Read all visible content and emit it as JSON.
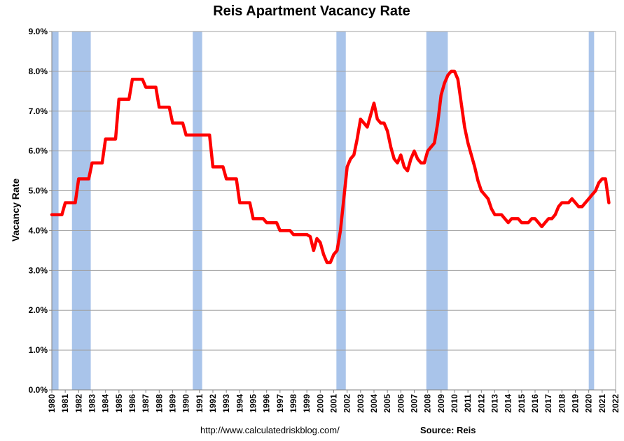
{
  "chart_data": {
    "type": "line",
    "title": "Reis Apartment Vacancy Rate",
    "xlabel": "",
    "ylabel": "Vacancy Rate",
    "ylim": [
      0,
      9
    ],
    "xlim": [
      1980,
      2022
    ],
    "y_ticks": [
      "0.0%",
      "1.0%",
      "2.0%",
      "3.0%",
      "4.0%",
      "5.0%",
      "6.0%",
      "7.0%",
      "8.0%",
      "9.0%"
    ],
    "y_tick_values": [
      0,
      1,
      2,
      3,
      4,
      5,
      6,
      7,
      8,
      9
    ],
    "x_ticks": [
      "1980",
      "1981",
      "1982",
      "1983",
      "1984",
      "1985",
      "1986",
      "1987",
      "1988",
      "1989",
      "1990",
      "1991",
      "1992",
      "1993",
      "1994",
      "1995",
      "1996",
      "1997",
      "1998",
      "1999",
      "2000",
      "2001",
      "2002",
      "2003",
      "2004",
      "2005",
      "2006",
      "2007",
      "2008",
      "2009",
      "2010",
      "2011",
      "2012",
      "2013",
      "2014",
      "2015",
      "2016",
      "2017",
      "2018",
      "2019",
      "2020",
      "2021",
      "2022"
    ],
    "grid": true,
    "line_color": "#ff0000",
    "recession_color": "#a9c4ea",
    "recessions": [
      [
        1980.0,
        1980.5
      ],
      [
        1981.5,
        1982.9
      ],
      [
        1990.5,
        1991.2
      ],
      [
        2001.2,
        2001.9
      ],
      [
        2007.9,
        2009.5
      ],
      [
        2020.0,
        2020.4
      ]
    ],
    "x": [
      1980.0,
      1980.75,
      1981.0,
      1981.75,
      1982.0,
      1982.75,
      1983.0,
      1983.75,
      1984.0,
      1984.75,
      1985.0,
      1985.75,
      1986.0,
      1986.75,
      1987.0,
      1987.75,
      1988.0,
      1988.75,
      1989.0,
      1989.75,
      1990.0,
      1990.75,
      1991.0,
      1991.75,
      1992.0,
      1992.75,
      1993.0,
      1993.75,
      1994.0,
      1994.75,
      1995.0,
      1995.75,
      1996.0,
      1996.75,
      1997.0,
      1997.75,
      1998.0,
      1998.75,
      1999.0,
      1999.25,
      1999.5,
      1999.75,
      2000.0,
      2000.25,
      2000.5,
      2000.75,
      2001.0,
      2001.25,
      2001.5,
      2001.75,
      2002.0,
      2002.25,
      2002.5,
      2002.75,
      2003.0,
      2003.25,
      2003.5,
      2003.75,
      2004.0,
      2004.25,
      2004.5,
      2004.75,
      2005.0,
      2005.25,
      2005.5,
      2005.75,
      2006.0,
      2006.25,
      2006.5,
      2006.75,
      2007.0,
      2007.25,
      2007.5,
      2007.75,
      2008.0,
      2008.25,
      2008.5,
      2008.75,
      2009.0,
      2009.25,
      2009.5,
      2009.75,
      2010.0,
      2010.25,
      2010.5,
      2010.75,
      2011.0,
      2011.25,
      2011.5,
      2011.75,
      2012.0,
      2012.25,
      2012.5,
      2012.75,
      2013.0,
      2013.25,
      2013.5,
      2013.75,
      2014.0,
      2014.25,
      2014.5,
      2014.75,
      2015.0,
      2015.25,
      2015.5,
      2015.75,
      2016.0,
      2016.25,
      2016.5,
      2016.75,
      2017.0,
      2017.25,
      2017.5,
      2017.75,
      2018.0,
      2018.25,
      2018.5,
      2018.75,
      2019.0,
      2019.25,
      2019.5,
      2019.75,
      2020.0,
      2020.25,
      2020.5,
      2020.75,
      2021.0,
      2021.25,
      2021.5
    ],
    "values": [
      4.4,
      4.4,
      4.7,
      4.7,
      5.3,
      5.3,
      5.7,
      5.7,
      6.3,
      6.3,
      7.3,
      7.3,
      7.8,
      7.8,
      7.6,
      7.6,
      7.1,
      7.1,
      6.7,
      6.7,
      6.4,
      6.4,
      6.4,
      6.4,
      5.6,
      5.6,
      5.3,
      5.3,
      4.7,
      4.7,
      4.3,
      4.3,
      4.2,
      4.2,
      4.0,
      4.0,
      3.9,
      3.9,
      3.9,
      3.85,
      3.5,
      3.8,
      3.7,
      3.4,
      3.2,
      3.2,
      3.4,
      3.5,
      4.0,
      4.8,
      5.6,
      5.8,
      5.9,
      6.3,
      6.8,
      6.7,
      6.6,
      6.9,
      7.2,
      6.8,
      6.7,
      6.7,
      6.5,
      6.1,
      5.8,
      5.7,
      5.9,
      5.6,
      5.5,
      5.8,
      6.0,
      5.8,
      5.7,
      5.7,
      6.0,
      6.1,
      6.2,
      6.7,
      7.4,
      7.7,
      7.9,
      8.0,
      8.0,
      7.8,
      7.2,
      6.6,
      6.2,
      5.9,
      5.6,
      5.25,
      5.0,
      4.9,
      4.8,
      4.55,
      4.4,
      4.4,
      4.4,
      4.3,
      4.2,
      4.3,
      4.3,
      4.3,
      4.2,
      4.2,
      4.2,
      4.3,
      4.3,
      4.2,
      4.1,
      4.2,
      4.3,
      4.3,
      4.4,
      4.6,
      4.7,
      4.7,
      4.7,
      4.8,
      4.7,
      4.6,
      4.6,
      4.7,
      4.8,
      4.9,
      5.0,
      5.2,
      5.3,
      5.3,
      4.7
    ]
  },
  "footer": {
    "url": "http://www.calculatedriskblog.com/",
    "source": "Source: Reis"
  }
}
